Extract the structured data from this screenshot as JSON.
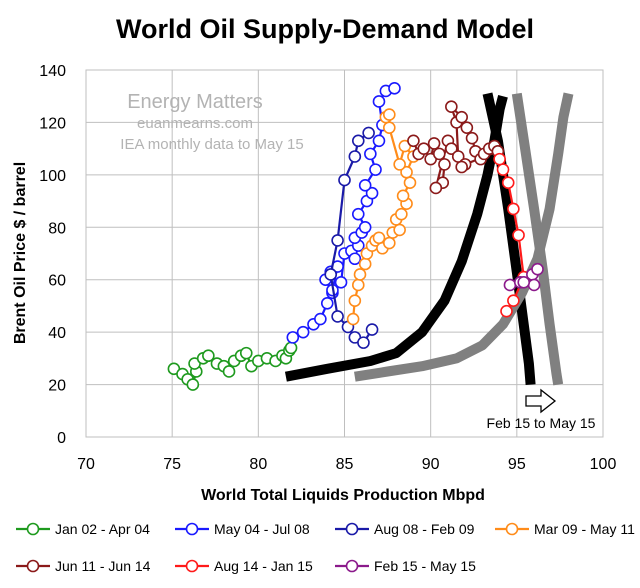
{
  "chart_data": {
    "type": "scatter",
    "title": "World Oil Supply-Demand Model",
    "xlabel": "World Total Liquids Production Mbpd",
    "ylabel": "Brent Oil Price $ / barrel",
    "xlim": [
      70,
      100
    ],
    "ylim": [
      0,
      140
    ],
    "x_ticks": [
      "70",
      "75",
      "80",
      "85",
      "90",
      "95",
      "100"
    ],
    "y_ticks": [
      "0",
      "20",
      "40",
      "60",
      "80",
      "100",
      "120",
      "140"
    ],
    "grid": true,
    "legend_position": "bottom",
    "watermark": {
      "line1": "Energy Matters",
      "line2": "euanmearns.com",
      "line3": "IEA monthly data to May 15"
    },
    "annotation": "Feb 15 to May 15",
    "series": [
      {
        "name": "Jan 02 - Apr 04",
        "color": "#1e9a1e",
        "points": [
          [
            75.1,
            26
          ],
          [
            75.6,
            24
          ],
          [
            75.9,
            22
          ],
          [
            76.2,
            20
          ],
          [
            76.4,
            25
          ],
          [
            76.3,
            28
          ],
          [
            76.8,
            30
          ],
          [
            77.1,
            31
          ],
          [
            77.6,
            28
          ],
          [
            78.0,
            27
          ],
          [
            78.3,
            25
          ],
          [
            78.6,
            29
          ],
          [
            79.0,
            31
          ],
          [
            79.3,
            32
          ],
          [
            79.6,
            27
          ],
          [
            80.0,
            29
          ],
          [
            80.5,
            30
          ],
          [
            81.0,
            29
          ],
          [
            81.4,
            31
          ],
          [
            81.6,
            30
          ],
          [
            81.8,
            33
          ],
          [
            81.9,
            34
          ]
        ]
      },
      {
        "name": "May 04 - Jul 08",
        "color": "#1a1aff",
        "points": [
          [
            82.0,
            38
          ],
          [
            82.6,
            40
          ],
          [
            83.2,
            43
          ],
          [
            83.6,
            45
          ],
          [
            84.0,
            51
          ],
          [
            84.3,
            55
          ],
          [
            83.9,
            60
          ],
          [
            84.2,
            63
          ],
          [
            84.6,
            65
          ],
          [
            84.3,
            56
          ],
          [
            84.8,
            59
          ],
          [
            85.0,
            70
          ],
          [
            85.4,
            71
          ],
          [
            85.6,
            68
          ],
          [
            85.8,
            73
          ],
          [
            85.6,
            76
          ],
          [
            86.0,
            78
          ],
          [
            86.2,
            80
          ],
          [
            85.8,
            85
          ],
          [
            86.3,
            90
          ],
          [
            86.6,
            93
          ],
          [
            86.2,
            96
          ],
          [
            86.8,
            102
          ],
          [
            86.5,
            108
          ],
          [
            87.0,
            113
          ],
          [
            87.2,
            119
          ],
          [
            87.0,
            128
          ],
          [
            87.4,
            132
          ],
          [
            87.9,
            133
          ]
        ]
      },
      {
        "name": "Aug 08 - Feb 09",
        "color": "#1a1aa8",
        "points": [
          [
            86.4,
            116
          ],
          [
            85.8,
            113
          ],
          [
            85.6,
            107
          ],
          [
            85.0,
            98
          ],
          [
            84.6,
            75
          ],
          [
            84.2,
            62
          ],
          [
            84.6,
            46
          ],
          [
            85.2,
            42
          ],
          [
            85.6,
            38
          ],
          [
            86.1,
            36
          ],
          [
            86.6,
            41
          ]
        ]
      },
      {
        "name": "Mar 09 - May 11",
        "color": "#ff8c1a",
        "points": [
          [
            85.5,
            45
          ],
          [
            85.6,
            52
          ],
          [
            85.8,
            58
          ],
          [
            85.9,
            62
          ],
          [
            86.2,
            66
          ],
          [
            86.3,
            70
          ],
          [
            86.6,
            73
          ],
          [
            86.8,
            75
          ],
          [
            87.0,
            76
          ],
          [
            87.2,
            72
          ],
          [
            87.6,
            74
          ],
          [
            87.8,
            78
          ],
          [
            88.2,
            79
          ],
          [
            88.0,
            83
          ],
          [
            88.3,
            85
          ],
          [
            88.6,
            89
          ],
          [
            88.4,
            92
          ],
          [
            88.8,
            97
          ],
          [
            88.6,
            101
          ],
          [
            89.0,
            107
          ],
          [
            88.5,
            111
          ],
          [
            88.2,
            104
          ],
          [
            87.6,
            118
          ],
          [
            87.4,
            122
          ],
          [
            87.6,
            123
          ]
        ]
      },
      {
        "name": "Jun 11 - Jun 14",
        "color": "#8b1a1a",
        "points": [
          [
            89.0,
            113
          ],
          [
            89.3,
            108
          ],
          [
            89.6,
            110
          ],
          [
            90.0,
            106
          ],
          [
            90.2,
            112
          ],
          [
            90.5,
            108
          ],
          [
            90.8,
            104
          ],
          [
            90.7,
            97
          ],
          [
            90.3,
            95
          ],
          [
            91.0,
            113
          ],
          [
            91.2,
            110
          ],
          [
            91.6,
            107
          ],
          [
            91.5,
            120
          ],
          [
            91.2,
            126
          ],
          [
            91.8,
            122
          ],
          [
            92.1,
            118
          ],
          [
            92.4,
            114
          ],
          [
            92.6,
            109
          ],
          [
            92.9,
            106
          ],
          [
            93.1,
            108
          ],
          [
            93.4,
            110
          ],
          [
            93.7,
            111
          ],
          [
            93.9,
            109
          ],
          [
            92.0,
            104
          ],
          [
            91.8,
            103
          ]
        ]
      },
      {
        "name": "Aug 14 - Jan 15",
        "color": "#ff1a1a",
        "points": [
          [
            94.0,
            106
          ],
          [
            94.2,
            102
          ],
          [
            94.5,
            97
          ],
          [
            94.8,
            87
          ],
          [
            95.1,
            77
          ],
          [
            95.4,
            61
          ],
          [
            94.8,
            52
          ],
          [
            94.4,
            48
          ]
        ]
      },
      {
        "name": "Feb 15 - May 15",
        "color": "#8b1a8b",
        "points": [
          [
            94.6,
            58
          ],
          [
            95.2,
            59
          ],
          [
            95.9,
            62
          ],
          [
            96.2,
            64
          ],
          [
            96.0,
            58
          ],
          [
            95.4,
            59
          ]
        ]
      }
    ],
    "curves": [
      {
        "color": "#000000",
        "points": [
          [
            81.6,
            23
          ],
          [
            84,
            26
          ],
          [
            86.5,
            29
          ],
          [
            88,
            32
          ],
          [
            89.5,
            40
          ],
          [
            90.8,
            52
          ],
          [
            91.8,
            67
          ],
          [
            92.7,
            85
          ],
          [
            93.3,
            100
          ],
          [
            93.7,
            113
          ],
          [
            94.0,
            125
          ],
          [
            94.2,
            130
          ]
        ]
      },
      {
        "color": "#000000",
        "points": [
          [
            93.3,
            131
          ],
          [
            93.9,
            113
          ],
          [
            94.5,
            87
          ],
          [
            95.0,
            63
          ],
          [
            95.4,
            43
          ],
          [
            95.7,
            28
          ],
          [
            95.8,
            20
          ]
        ]
      },
      {
        "color": "#808080",
        "points": [
          [
            85.6,
            23
          ],
          [
            87.5,
            25
          ],
          [
            89.5,
            27
          ],
          [
            91.5,
            30
          ],
          [
            93.0,
            35
          ],
          [
            94.2,
            43
          ],
          [
            95.3,
            55
          ],
          [
            96.2,
            68
          ],
          [
            96.9,
            87
          ],
          [
            97.4,
            108
          ],
          [
            97.7,
            122
          ],
          [
            98.0,
            131
          ]
        ]
      },
      {
        "color": "#808080",
        "points": [
          [
            95.0,
            131
          ],
          [
            95.5,
            109
          ],
          [
            96.0,
            87
          ],
          [
            96.5,
            64
          ],
          [
            96.9,
            43
          ],
          [
            97.3,
            24
          ],
          [
            97.4,
            20
          ]
        ]
      }
    ]
  }
}
